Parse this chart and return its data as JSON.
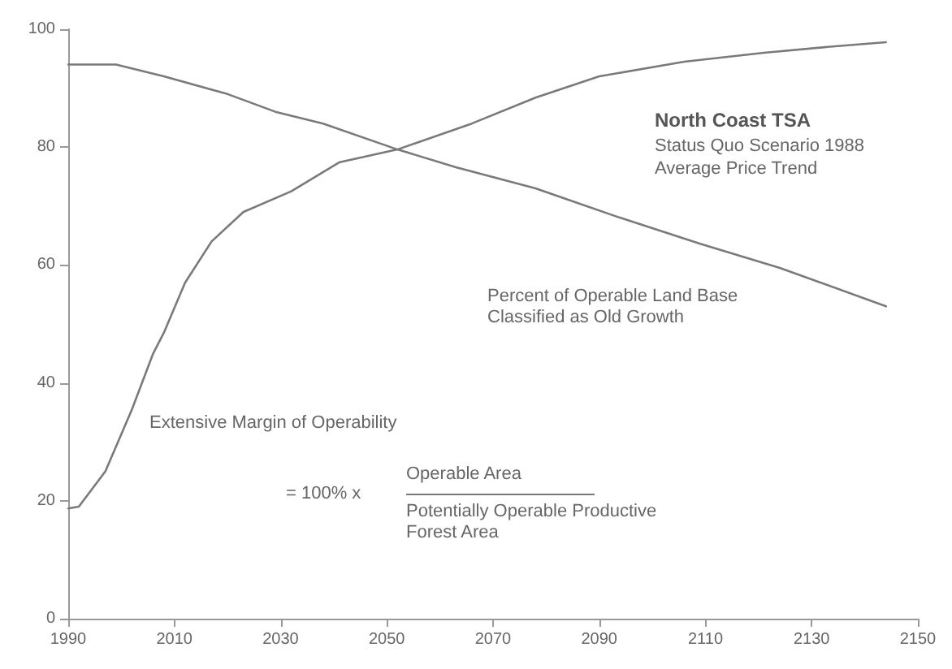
{
  "chart_data": {
    "type": "line",
    "title": "North Coast TSA",
    "subtitle": "Status Quo Scenario 1988\nAverage Price Trend",
    "annotations": [
      "= 100% x",
      "Operable Area",
      "Potentially Operable Productive\nForest Area"
    ],
    "series": [
      {
        "name": "Percent of Operable Land Base\nClassified as Old Growth",
        "color": "#7a7a7a",
        "x": [
          1990,
          1999,
          2008,
          2020,
          2029,
          2038,
          2052,
          2063,
          2078,
          2093,
          2109,
          2124,
          2144
        ],
        "values": [
          94,
          94,
          92,
          89,
          86,
          84,
          79.6,
          76.6,
          73,
          68.3,
          63.6,
          59.5,
          53
        ]
      },
      {
        "name": "Extensive Margin of Operability",
        "color": "#7a7a7a",
        "x": [
          1990,
          1992,
          1997,
          2002,
          2006,
          2008,
          2012,
          2017,
          2023,
          2032,
          2041,
          2052,
          2066,
          2078,
          2090,
          2106,
          2121,
          2133,
          2144
        ],
        "values": [
          18.7,
          19,
          25,
          35.5,
          45,
          48.5,
          57,
          64,
          69,
          72.5,
          77.4,
          79.6,
          84,
          88.4,
          92,
          94.5,
          96,
          97,
          97.8
        ]
      }
    ],
    "xlim": [
      1990,
      2150
    ],
    "xticks": [
      1990,
      2010,
      2030,
      2050,
      2070,
      2090,
      2110,
      2130,
      2150
    ],
    "ylim": [
      0,
      100
    ],
    "yticks": [
      0,
      20,
      40,
      60,
      80,
      100
    ],
    "grid": false,
    "legend": false,
    "marker": "none",
    "line_style": "solid"
  }
}
